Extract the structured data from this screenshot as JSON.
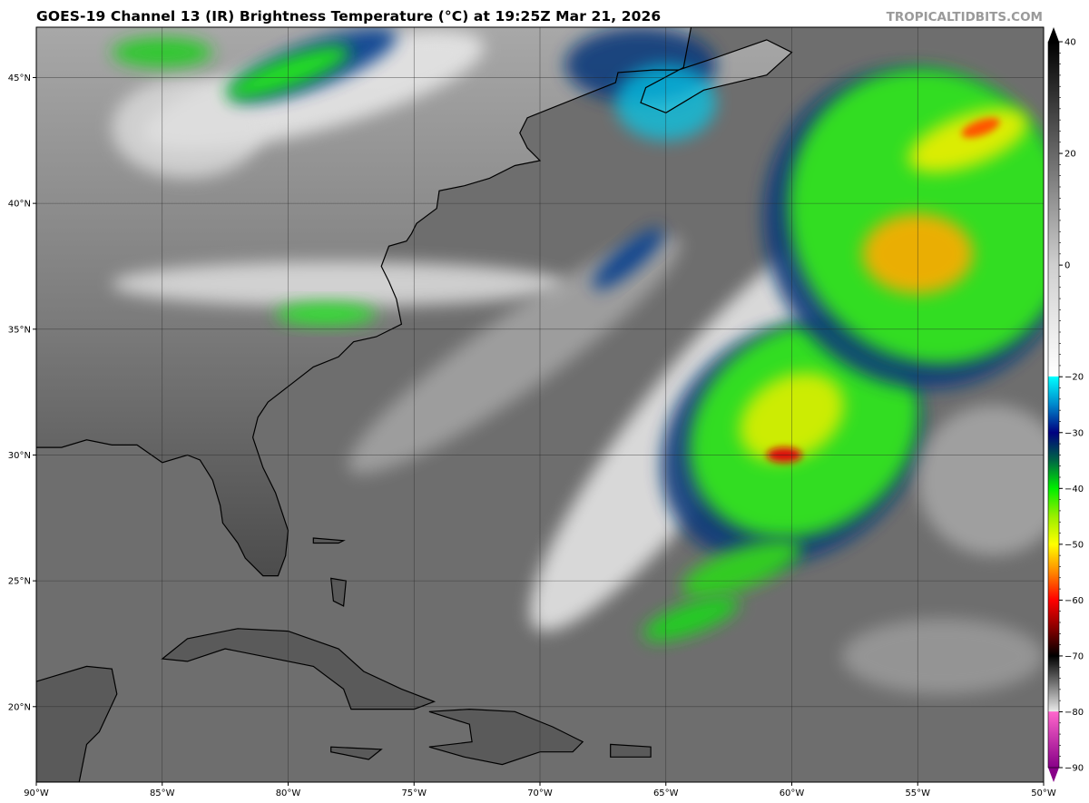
{
  "title": "GOES-19 Channel 13 (IR) Brightness Temperature (°C) at 19:25Z Mar 21, 2026",
  "credit": "TROPICALTIDBITS.COM",
  "map": {
    "lon_range": [
      -90,
      -50
    ],
    "lat_range": [
      17,
      47
    ],
    "lon_ticks": [
      -90,
      -85,
      -80,
      -75,
      -70,
      -65,
      -60,
      -55,
      -50
    ],
    "lon_labels": [
      "90°W",
      "85°W",
      "80°W",
      "75°W",
      "70°W",
      "65°W",
      "60°W",
      "55°W",
      "50°W"
    ],
    "lat_ticks": [
      20,
      25,
      30,
      35,
      40,
      45
    ],
    "lat_labels": [
      "20°N",
      "25°N",
      "30°N",
      "35°N",
      "40°N",
      "45°N"
    ],
    "grid": true,
    "colors": {
      "ocean": "#6e6e6e",
      "land_south": "#4c4c4c",
      "land_north": "#a8a8a8",
      "coast": "#000000"
    }
  },
  "colorbar": {
    "range": [
      -90,
      40
    ],
    "ticks": [
      40,
      20,
      0,
      -20,
      -30,
      -40,
      -50,
      -60,
      -70,
      -80,
      -90
    ],
    "tick_labels": [
      "40",
      "20",
      "0",
      "−20",
      "−30",
      "−40",
      "−50",
      "−60",
      "−70",
      "−80",
      "−90"
    ],
    "stops": [
      {
        "t": 40,
        "c": "#000000"
      },
      {
        "t": 0,
        "c": "#cfcfcf"
      },
      {
        "t": -19.9,
        "c": "#ffffff"
      },
      {
        "t": -20,
        "c": "#00ffff"
      },
      {
        "t": -25,
        "c": "#0088cc"
      },
      {
        "t": -30,
        "c": "#000080"
      },
      {
        "t": -35,
        "c": "#006644"
      },
      {
        "t": -40,
        "c": "#00ee00"
      },
      {
        "t": -45,
        "c": "#99ee00"
      },
      {
        "t": -50,
        "c": "#ffff00"
      },
      {
        "t": -55,
        "c": "#ff8800"
      },
      {
        "t": -60,
        "c": "#ff0000"
      },
      {
        "t": -65,
        "c": "#880000"
      },
      {
        "t": -70,
        "c": "#000000"
      },
      {
        "t": -79.9,
        "c": "#e8e8e8"
      },
      {
        "t": -80,
        "c": "#ff66cc"
      },
      {
        "t": -90,
        "c": "#880088"
      }
    ]
  }
}
